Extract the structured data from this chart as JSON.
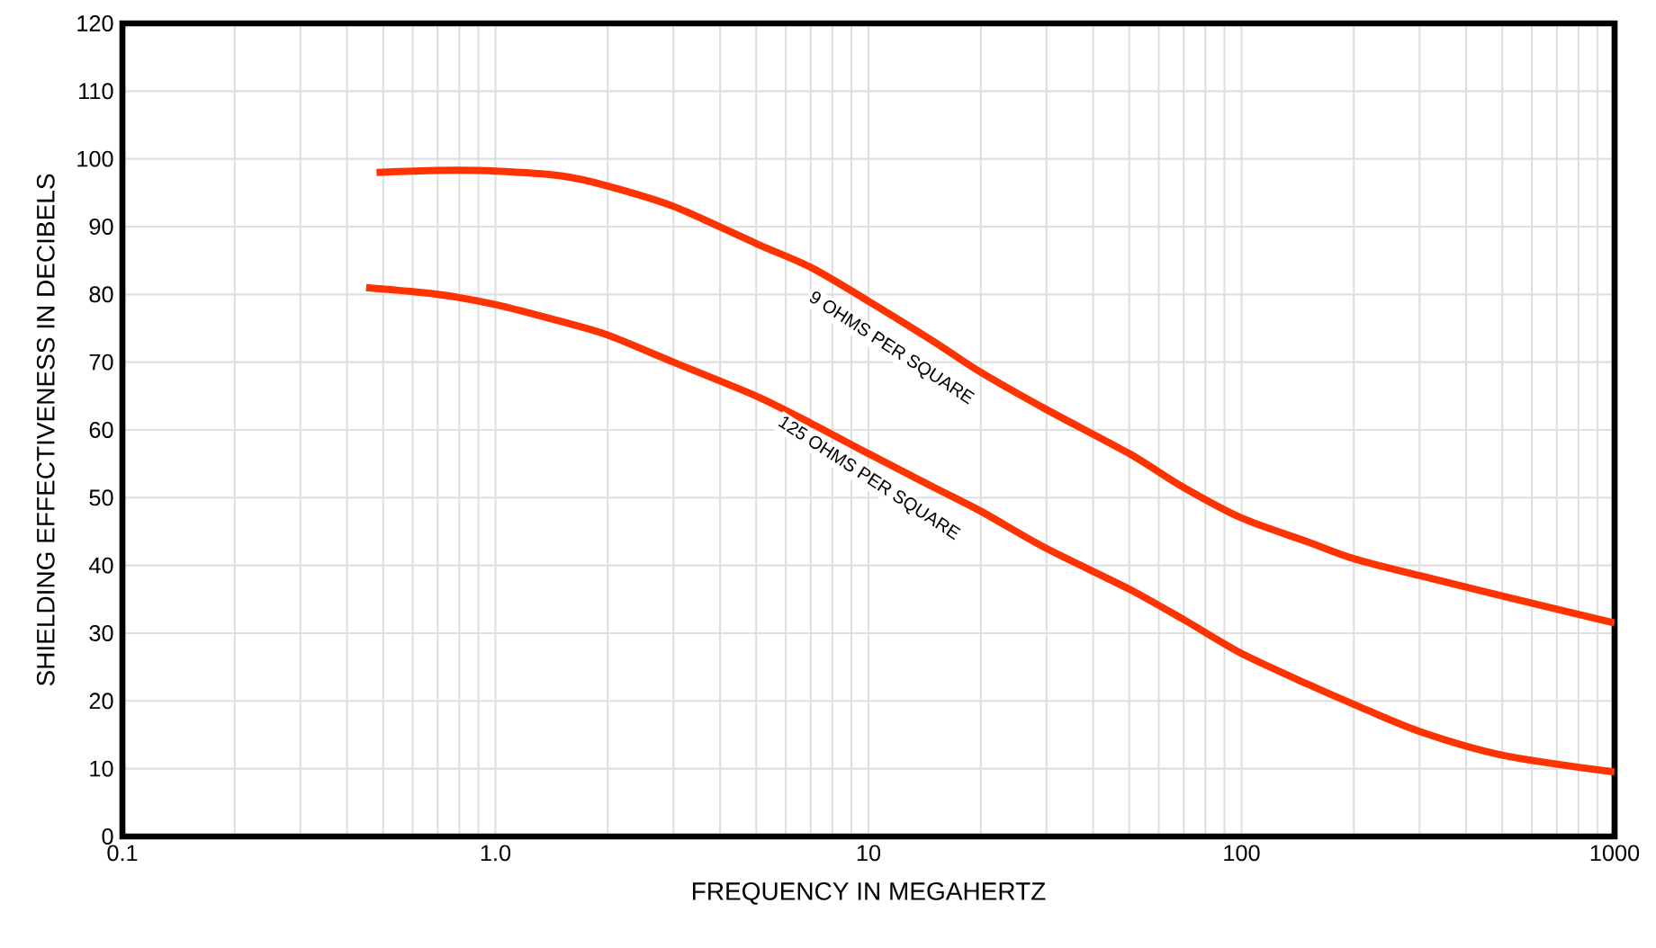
{
  "chart_data": {
    "type": "line",
    "xlabel": "FREQUENCY IN MEGAHERTZ",
    "ylabel": "SHIELDING EFFECTIVENESS IN DECIBELS",
    "log": "x",
    "grid": true,
    "xlim": [
      0.1,
      1000
    ],
    "ylim": [
      0,
      120
    ],
    "xticks": [
      0.1,
      {
        "value": 1,
        "label": "1.0"
      },
      10,
      100,
      1000
    ],
    "yticks": [
      0,
      10,
      20,
      30,
      40,
      50,
      60,
      70,
      80,
      90,
      100,
      110,
      120
    ],
    "series": [
      {
        "color": "#ff3300",
        "x": [
          0.48,
          0.7,
          1.0,
          1.5,
          2,
          3,
          5,
          7,
          10,
          15,
          20,
          30,
          50,
          70,
          100,
          150,
          200,
          300,
          500,
          1000
        ],
        "values": [
          98,
          98.3,
          98.2,
          97.5,
          96,
          93,
          87.5,
          84,
          79,
          73,
          68.5,
          63,
          56.5,
          51.5,
          47,
          43.5,
          41,
          38.5,
          35.5,
          31.5
        ]
      },
      {
        "color": "#ff3300",
        "x": [
          0.45,
          0.7,
          1.0,
          1.5,
          2,
          3,
          5,
          7,
          10,
          15,
          20,
          30,
          50,
          70,
          100,
          150,
          200,
          300,
          500,
          1000
        ],
        "values": [
          81,
          80,
          78.5,
          76,
          74,
          70,
          65,
          61,
          56.5,
          51.5,
          48,
          42.5,
          36.5,
          32,
          27,
          22.5,
          19.5,
          15.5,
          12,
          9.5
        ]
      }
    ],
    "annotations": [
      "9 OHMS PER SQUARE",
      "125 OHMS PER SQUARE"
    ]
  }
}
